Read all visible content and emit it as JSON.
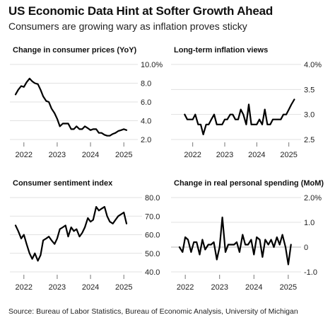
{
  "header": {
    "title": "US Economic Data Hint at Softer Growth Ahead",
    "subtitle": "Consumers are growing wary as inflation proves sticky"
  },
  "footer": {
    "source": "Source: Bureau of Labor Statistics, Bureau of Economic Analysis, University of Michigan"
  },
  "chart_data": [
    {
      "type": "line",
      "title": "Change in consumer prices (YoY)",
      "xlabel": "",
      "ylabel": "",
      "x_ticks": [
        "2022",
        "2023",
        "2024",
        "2025"
      ],
      "y_ticks": [
        "10.0%",
        "8.0",
        "6.0",
        "4.0",
        "2.0"
      ],
      "xlim": [
        2021.75,
        2025.25
      ],
      "ylim": [
        2.0,
        10.0
      ],
      "grid": "horizontal",
      "series": [
        {
          "x": [
            2021.75,
            2021.83,
            2021.92,
            2022.0,
            2022.08,
            2022.17,
            2022.25,
            2022.33,
            2022.42,
            2022.5,
            2022.58,
            2022.67,
            2022.75,
            2022.83,
            2022.92,
            2023.0,
            2023.08,
            2023.17,
            2023.25,
            2023.33,
            2023.42,
            2023.5,
            2023.58,
            2023.67,
            2023.75,
            2023.83,
            2023.92,
            2024.0,
            2024.08,
            2024.17,
            2024.25,
            2024.33,
            2024.42,
            2024.5,
            2024.58,
            2024.67,
            2024.75,
            2024.83,
            2024.92,
            2025.0,
            2025.08
          ],
          "y": [
            6.8,
            7.3,
            7.7,
            7.6,
            8.1,
            8.5,
            8.2,
            8.0,
            7.9,
            7.3,
            6.6,
            6.1,
            6.0,
            5.3,
            4.8,
            4.2,
            3.4,
            3.7,
            3.7,
            3.7,
            3.1,
            3.1,
            3.4,
            3.1,
            3.1,
            3.4,
            3.2,
            3.0,
            3.1,
            3.1,
            2.7,
            2.7,
            2.5,
            2.4,
            2.4,
            2.6,
            2.7,
            2.9,
            3.0,
            3.1,
            3.0
          ]
        }
      ]
    },
    {
      "type": "line",
      "title": "Long-term inflation views",
      "xlabel": "",
      "ylabel": "",
      "x_ticks": [
        "2022",
        "2023",
        "2024",
        "2025"
      ],
      "y_ticks": [
        "4.0%",
        "3.5",
        "3.0",
        "2.5"
      ],
      "xlim": [
        2021.5,
        2025.25
      ],
      "ylim": [
        2.5,
        4.0
      ],
      "grid": "horizontal",
      "series": [
        {
          "x": [
            2021.75,
            2021.83,
            2021.92,
            2022.0,
            2022.08,
            2022.17,
            2022.25,
            2022.33,
            2022.42,
            2022.5,
            2022.58,
            2022.67,
            2022.75,
            2022.83,
            2022.92,
            2023.0,
            2023.08,
            2023.17,
            2023.25,
            2023.33,
            2023.42,
            2023.5,
            2023.58,
            2023.67,
            2023.75,
            2023.83,
            2023.92,
            2024.0,
            2024.08,
            2024.17,
            2024.25,
            2024.33,
            2024.42,
            2024.5,
            2024.58,
            2024.67,
            2024.75,
            2024.83,
            2024.92,
            2025.0,
            2025.08,
            2025.17
          ],
          "y": [
            3.0,
            2.9,
            2.9,
            2.9,
            3.0,
            2.8,
            2.8,
            2.6,
            2.8,
            2.8,
            2.9,
            3.0,
            2.8,
            2.8,
            2.8,
            2.9,
            2.9,
            3.0,
            3.0,
            2.9,
            2.9,
            3.1,
            3.0,
            2.8,
            3.2,
            2.8,
            2.8,
            2.8,
            2.9,
            2.8,
            3.1,
            2.8,
            2.8,
            2.9,
            2.9,
            2.9,
            2.9,
            3.0,
            3.0,
            3.1,
            3.2,
            3.3
          ]
        }
      ]
    },
    {
      "type": "line",
      "title": "Consumer sentiment index",
      "xlabel": "",
      "ylabel": "",
      "x_ticks": [
        "2022",
        "2023",
        "2024",
        "2025"
      ],
      "y_ticks": [
        "80.0",
        "70.0",
        "60.0",
        "50.0",
        "40.0"
      ],
      "xlim": [
        2021.75,
        2025.25
      ],
      "ylim": [
        40.0,
        80.0
      ],
      "grid": "horizontal",
      "series": [
        {
          "x": [
            2021.75,
            2021.83,
            2021.92,
            2022.0,
            2022.08,
            2022.17,
            2022.25,
            2022.33,
            2022.42,
            2022.5,
            2022.58,
            2022.67,
            2022.75,
            2022.83,
            2022.92,
            2023.0,
            2023.08,
            2023.17,
            2023.25,
            2023.33,
            2023.42,
            2023.5,
            2023.58,
            2023.67,
            2023.75,
            2023.83,
            2023.92,
            2024.0,
            2024.08,
            2024.17,
            2024.25,
            2024.33,
            2024.42,
            2024.5,
            2024.58,
            2024.67,
            2024.75,
            2024.83,
            2024.92,
            2025.0,
            2025.08
          ],
          "y": [
            65,
            62,
            58,
            60,
            55,
            50,
            47,
            50,
            46,
            49,
            57,
            58,
            59,
            57,
            55,
            58,
            63,
            64,
            65,
            59,
            64,
            62,
            63,
            59,
            61,
            64,
            69,
            67,
            68,
            75,
            73,
            74,
            75,
            70,
            67,
            66,
            68,
            70,
            71,
            72,
            66
          ]
        }
      ]
    },
    {
      "type": "line",
      "title": "Change in real personal spending (MoM)",
      "xlabel": "",
      "ylabel": "",
      "x_ticks": [
        "2022",
        "2023",
        "2024",
        "2025"
      ],
      "y_ticks": [
        "2.0%",
        "1.0",
        "0",
        "-1.0"
      ],
      "xlim": [
        2021.75,
        2025.25
      ],
      "ylim": [
        -1.0,
        2.0
      ],
      "grid": "horizontal",
      "series": [
        {
          "x": [
            2021.83,
            2021.92,
            2022.0,
            2022.08,
            2022.17,
            2022.25,
            2022.33,
            2022.42,
            2022.5,
            2022.58,
            2022.67,
            2022.75,
            2022.83,
            2022.92,
            2023.0,
            2023.08,
            2023.17,
            2023.25,
            2023.33,
            2023.42,
            2023.5,
            2023.58,
            2023.67,
            2023.75,
            2023.83,
            2023.92,
            2024.0,
            2024.08,
            2024.17,
            2024.25,
            2024.33,
            2024.42,
            2024.5,
            2024.58,
            2024.67,
            2024.75,
            2024.83,
            2024.92,
            2025.0,
            2025.08
          ],
          "y": [
            0.0,
            -0.2,
            0.4,
            0.3,
            -0.2,
            0.2,
            0.2,
            -0.3,
            0.3,
            -0.1,
            0.1,
            0.1,
            0.2,
            -0.5,
            0.0,
            1.2,
            -0.2,
            0.1,
            0.1,
            0.1,
            0.2,
            -0.2,
            0.5,
            0.1,
            0.1,
            0.3,
            -0.3,
            0.4,
            0.3,
            -0.4,
            0.3,
            0.1,
            0.3,
            0.0,
            0.4,
            0.1,
            0.5,
            0.0,
            -0.7,
            0.1
          ]
        }
      ]
    }
  ]
}
